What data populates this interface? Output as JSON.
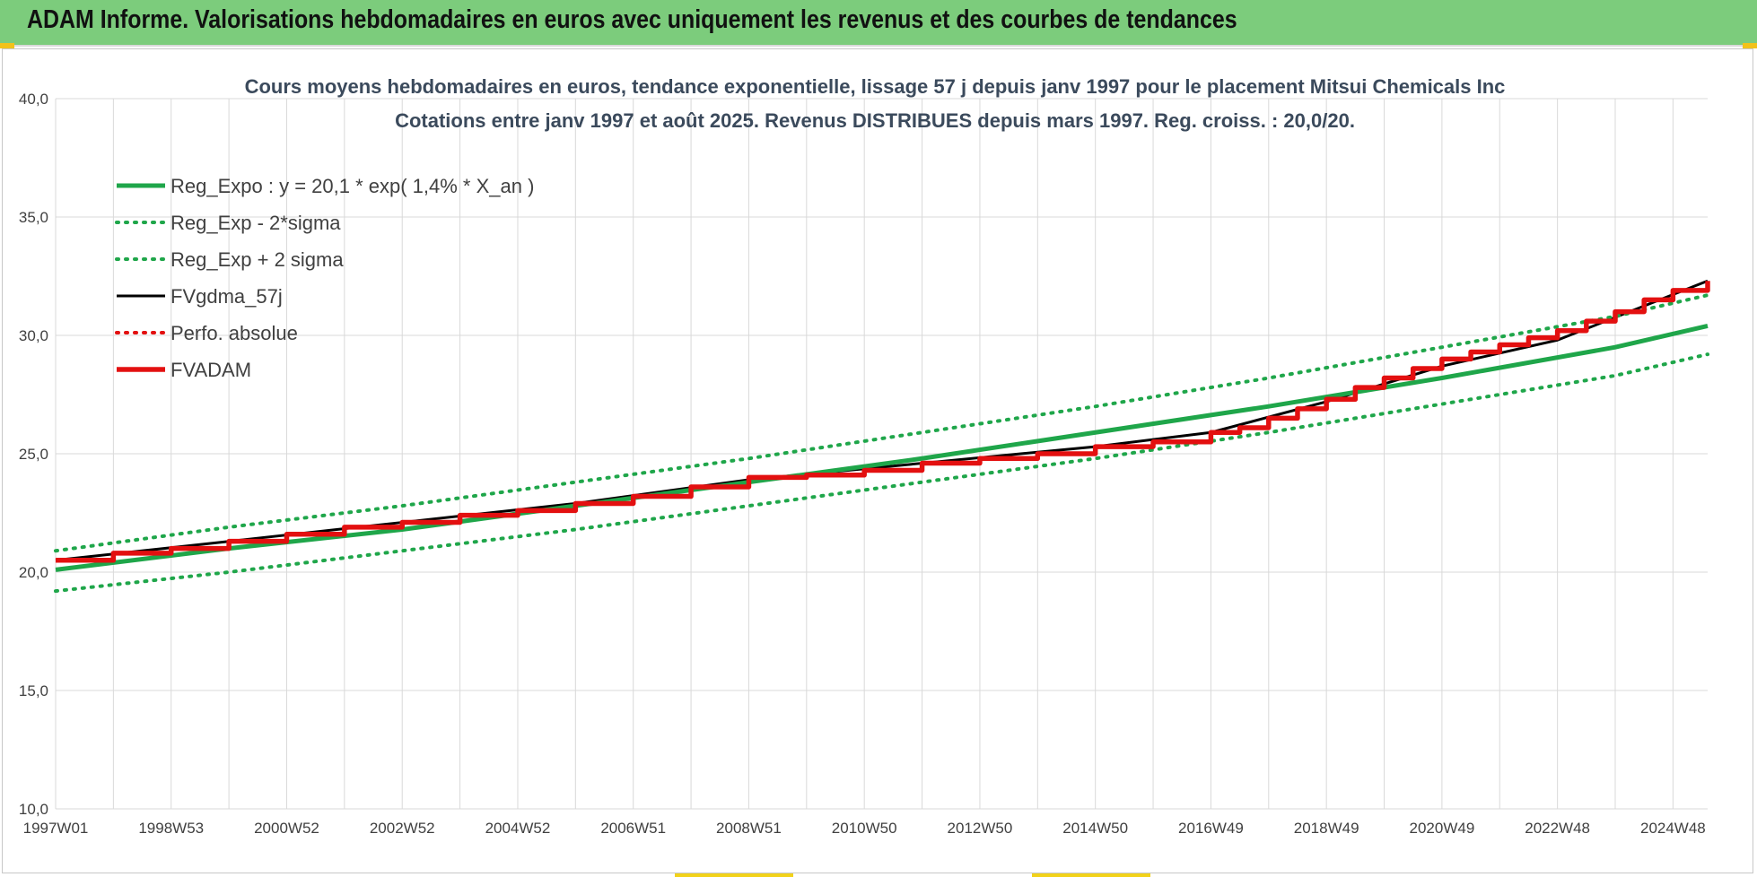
{
  "banner": {
    "title": "ADAM Informe. Valorisations hebdomadaires en euros avec uniquement les revenus et des courbes de tendances"
  },
  "colors": {
    "banner_bg": "#7ccc7c",
    "reg_green": "#1fa64a",
    "adam_red": "#e31010",
    "black": "#000000",
    "grid": "#d9d9d9"
  },
  "chart_data": {
    "type": "line",
    "title": "Cours moyens hebdomadaires en euros, tendance exponentielle, lissage 57 j depuis janv 1997 pour le placement Mitsui Chemicals Inc",
    "subtitle": "Cotations entre janv 1997 et août 2025.  Revenus DISTRIBUES depuis mars 1997. Reg. croiss. : 20,0/20.",
    "xlabel": "",
    "ylabel": "",
    "x_start": 1997.0,
    "x_end": 2025.6,
    "ylim": [
      10,
      40
    ],
    "y_ticks": [
      "10,0",
      "15,0",
      "20,0",
      "25,0",
      "30,0",
      "35,0",
      "40,0"
    ],
    "x_ticks": [
      {
        "label": "1997W01",
        "x": 1997.0
      },
      {
        "label": "1998W53",
        "x": 1999.0
      },
      {
        "label": "2000W52",
        "x": 2001.0
      },
      {
        "label": "2002W52",
        "x": 2003.0
      },
      {
        "label": "2004W52",
        "x": 2005.0
      },
      {
        "label": "2006W51",
        "x": 2007.0
      },
      {
        "label": "2008W51",
        "x": 2009.0
      },
      {
        "label": "2010W50",
        "x": 2011.0
      },
      {
        "label": "2012W50",
        "x": 2013.0
      },
      {
        "label": "2014W50",
        "x": 2015.0
      },
      {
        "label": "2016W49",
        "x": 2017.0
      },
      {
        "label": "2018W49",
        "x": 2019.0
      },
      {
        "label": "2020W49",
        "x": 2021.0
      },
      {
        "label": "2022W48",
        "x": 2023.0
      },
      {
        "label": "2024W48",
        "x": 2025.0
      }
    ],
    "grid": true,
    "legend_position": "top-left",
    "series": [
      {
        "name": "Reg_Expo : y = 20,1 * exp( 1,4% *  X_an )",
        "style": "solid",
        "color": "#1fa64a",
        "x": [
          1997.0,
          2000.0,
          2003.0,
          2006.0,
          2009.0,
          2012.0,
          2015.0,
          2018.0,
          2021.0,
          2024.0,
          2025.6
        ],
        "values": [
          20.1,
          21.0,
          21.8,
          22.8,
          23.8,
          24.8,
          25.9,
          27.0,
          28.2,
          29.5,
          30.4
        ]
      },
      {
        "name": "Reg_Exp - 2*sigma",
        "style": "dotted",
        "color": "#1fa64a",
        "x": [
          1997.0,
          2000.0,
          2003.0,
          2006.0,
          2009.0,
          2012.0,
          2015.0,
          2018.0,
          2021.0,
          2024.0,
          2025.6
        ],
        "values": [
          19.2,
          20.0,
          20.9,
          21.8,
          22.8,
          23.8,
          24.8,
          25.9,
          27.1,
          28.3,
          29.2
        ]
      },
      {
        "name": "Reg_Exp + 2 sigma",
        "style": "dotted",
        "color": "#1fa64a",
        "x": [
          1997.0,
          2000.0,
          2003.0,
          2006.0,
          2009.0,
          2012.0,
          2015.0,
          2018.0,
          2021.0,
          2024.0,
          2025.6
        ],
        "values": [
          20.9,
          21.9,
          22.8,
          23.8,
          24.8,
          25.9,
          27.0,
          28.2,
          29.5,
          30.8,
          31.7
        ]
      },
      {
        "name": "FVgdma_57j",
        "style": "solid",
        "color": "#000000",
        "x": [
          1997.0,
          2000.0,
          2003.0,
          2006.0,
          2009.0,
          2012.0,
          2015.0,
          2017.0,
          2019.0,
          2021.0,
          2023.0,
          2025.6
        ],
        "values": [
          20.5,
          21.3,
          22.1,
          22.9,
          23.9,
          24.6,
          25.3,
          25.9,
          27.2,
          28.7,
          29.8,
          32.3
        ]
      },
      {
        "name": "Perfo. absolue",
        "style": "dotted",
        "color": "#e31010",
        "x": [],
        "values": []
      },
      {
        "name": "FVADAM",
        "style": "solid",
        "color": "#e31010",
        "x": [
          1997.0,
          1998.0,
          1999.0,
          2000.0,
          2001.0,
          2002.0,
          2003.0,
          2004.0,
          2005.0,
          2006.0,
          2007.0,
          2008.0,
          2009.0,
          2010.0,
          2011.0,
          2012.0,
          2013.0,
          2014.0,
          2015.0,
          2016.0,
          2017.0,
          2017.5,
          2018.0,
          2018.5,
          2019.0,
          2019.5,
          2020.0,
          2020.5,
          2021.0,
          2021.5,
          2022.0,
          2022.5,
          2023.0,
          2023.5,
          2024.0,
          2024.5,
          2025.0,
          2025.6
        ],
        "values": [
          20.5,
          20.8,
          21.0,
          21.3,
          21.6,
          21.9,
          22.1,
          22.4,
          22.6,
          22.9,
          23.2,
          23.6,
          24.0,
          24.1,
          24.3,
          24.6,
          24.8,
          25.0,
          25.3,
          25.5,
          25.9,
          26.1,
          26.5,
          26.9,
          27.3,
          27.8,
          28.2,
          28.6,
          29.0,
          29.3,
          29.6,
          29.9,
          30.2,
          30.6,
          31.0,
          31.5,
          31.9,
          32.3
        ]
      }
    ]
  }
}
